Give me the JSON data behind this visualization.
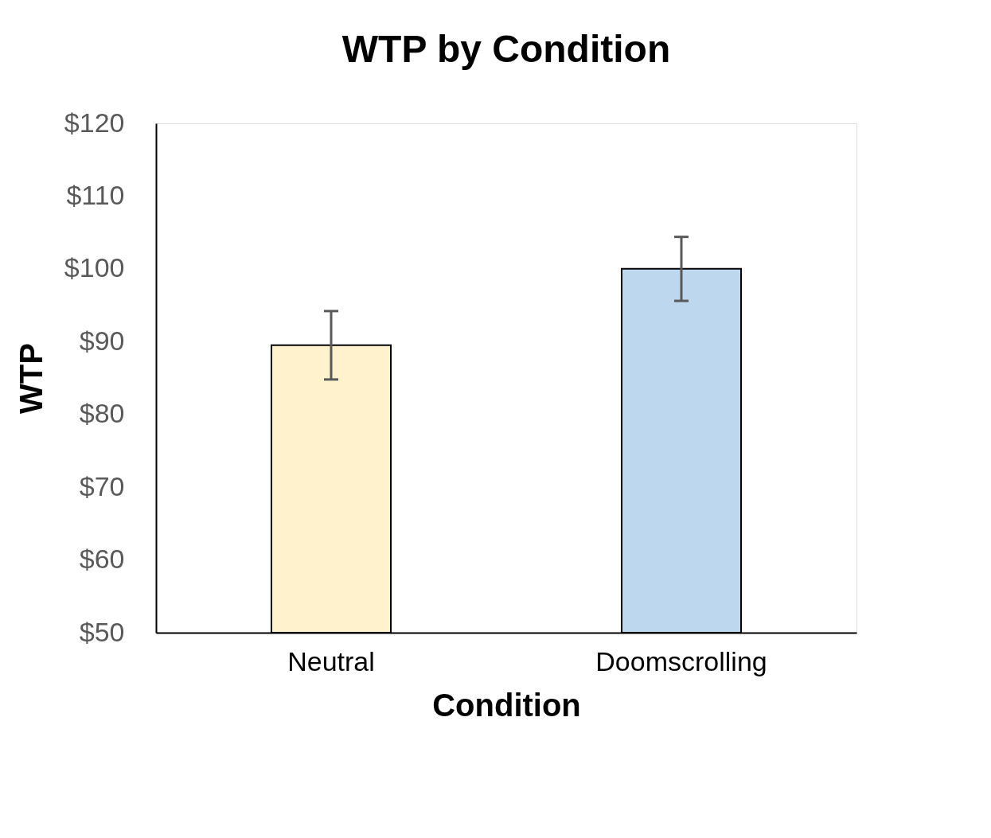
{
  "chart_data": {
    "type": "bar",
    "title": "WTP by Condition",
    "xlabel": "Condition",
    "ylabel": "WTP",
    "categories": [
      "Neutral",
      "Doomscrolling"
    ],
    "values": [
      89.5,
      100
    ],
    "colors": [
      "#fff2cc",
      "#bdd7ee"
    ],
    "errors": [
      4.7,
      4.4
    ],
    "ylim": [
      50,
      120
    ],
    "yticks": [
      {
        "value": 50,
        "label": "$50"
      },
      {
        "value": 60,
        "label": "$60"
      },
      {
        "value": 70,
        "label": "$70"
      },
      {
        "value": 80,
        "label": "$80"
      },
      {
        "value": 90,
        "label": "$90"
      },
      {
        "value": 100,
        "label": "$100"
      },
      {
        "value": 110,
        "label": "$110"
      },
      {
        "value": 120,
        "label": "$120"
      }
    ],
    "grid": false,
    "legend": false
  }
}
